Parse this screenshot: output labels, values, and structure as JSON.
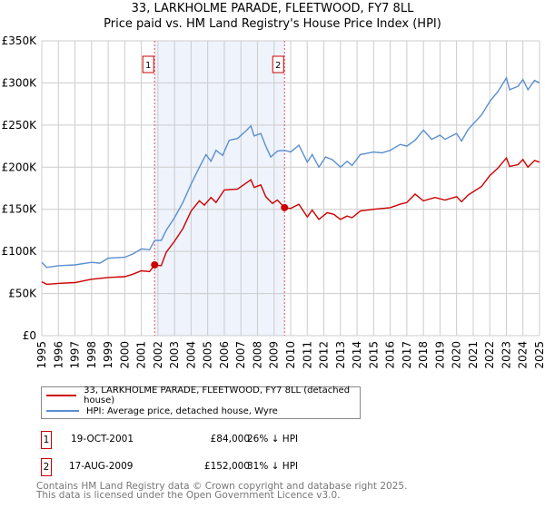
{
  "header": {
    "title": "33, LARKHOLME PARADE, FLEETWOOD, FY7 8LL",
    "subtitle": "Price paid vs. HM Land Registry's House Price Index (HPI)"
  },
  "chart_data": {
    "type": "line",
    "title": "33, LARKHOLME PARADE, FLEETWOOD, FY7 8LL",
    "subtitle": "Price paid vs. HM Land Registry's House Price Index (HPI)",
    "xlim": [
      1995,
      2025
    ],
    "ylim": [
      0,
      350000
    ],
    "yticks": [
      {
        "v": 0,
        "label": "£0"
      },
      {
        "v": 50000,
        "label": "£50K"
      },
      {
        "v": 100000,
        "label": "£100K"
      },
      {
        "v": 150000,
        "label": "£150K"
      },
      {
        "v": 200000,
        "label": "£200K"
      },
      {
        "v": 250000,
        "label": "£250K"
      },
      {
        "v": 300000,
        "label": "£300K"
      },
      {
        "v": 350000,
        "label": "£350K"
      }
    ],
    "xticks": [
      "1995",
      "1996",
      "1997",
      "1998",
      "1999",
      "2000",
      "2001",
      "2002",
      "2003",
      "2004",
      "2005",
      "2006",
      "2007",
      "2008",
      "2009",
      "2010",
      "2011",
      "2012",
      "2013",
      "2014",
      "2015",
      "2016",
      "2017",
      "2018",
      "2019",
      "2020",
      "2021",
      "2022",
      "2023",
      "2024",
      "2025"
    ],
    "grid": true,
    "shaded_range": [
      2001.8,
      2009.63
    ],
    "colors": {
      "property": "#cc0000",
      "hpi": "#5b8fd0",
      "shade": "#eef3fc",
      "marker_border": "#cc0000"
    },
    "series": [
      {
        "name": "33, LARKHOLME PARADE, FLEETWOOD, FY7 8LL (detached house)",
        "color": "#cc0000",
        "x": [
          1995,
          1995.3,
          1996,
          1997,
          1998,
          1999,
          2000,
          2000.5,
          2001,
          2001.5,
          2001.8,
          2002.2,
          2002.5,
          2003,
          2003.5,
          2004,
          2004.5,
          2004.8,
          2005.2,
          2005.5,
          2006,
          2006.8,
          2007.6,
          2007.8,
          2008.2,
          2008.5,
          2008.9,
          2009.2,
          2009.63,
          2010,
          2010.5,
          2011,
          2011.3,
          2011.7,
          2012.2,
          2012.6,
          2013,
          2013.4,
          2013.7,
          2014.2,
          2015,
          2015.5,
          2016,
          2016.6,
          2017,
          2017.5,
          2018,
          2018.7,
          2019.3,
          2020,
          2020.3,
          2020.7,
          2021.5,
          2022,
          2022.5,
          2023,
          2023.2,
          2023.7,
          2024,
          2024.3,
          2024.7,
          2025
        ],
        "y": [
          64000,
          61000,
          62000,
          63000,
          67000,
          69000,
          70000,
          73000,
          77000,
          76000,
          84000,
          83000,
          99000,
          112000,
          127000,
          148000,
          160000,
          155000,
          164000,
          158000,
          173000,
          174000,
          185000,
          176000,
          179000,
          165000,
          157000,
          161000,
          152000,
          151000,
          156000,
          141000,
          149000,
          138000,
          146000,
          144000,
          138000,
          142000,
          140000,
          148000,
          150000,
          151000,
          152000,
          156000,
          158000,
          168000,
          160000,
          164000,
          161000,
          165000,
          159000,
          167000,
          177000,
          190000,
          199000,
          211000,
          201000,
          203000,
          209000,
          200000,
          208000,
          206000
        ]
      },
      {
        "name": "HPI: Average price, detached house, Wyre",
        "color": "#5b8fd0",
        "x": [
          1995,
          1995.3,
          1996,
          1997,
          1998,
          1998.5,
          1999,
          2000,
          2000.5,
          2001,
          2001.5,
          2001.8,
          2002.2,
          2002.5,
          2003,
          2003.5,
          2004,
          2004.5,
          2004.9,
          2005.2,
          2005.5,
          2005.9,
          2006.3,
          2006.8,
          2007.3,
          2007.6,
          2007.8,
          2008.2,
          2008.5,
          2008.8,
          2009.2,
          2009.63,
          2010,
          2010.5,
          2011,
          2011.3,
          2011.7,
          2012.1,
          2012.5,
          2013,
          2013.4,
          2013.7,
          2014.2,
          2015,
          2015.5,
          2016,
          2016.6,
          2017,
          2017.5,
          2018,
          2018.5,
          2019,
          2019.3,
          2020,
          2020.3,
          2020.7,
          2021.5,
          2022,
          2022.5,
          2023,
          2023.2,
          2023.7,
          2024,
          2024.3,
          2024.7,
          2025
        ],
        "y": [
          87000,
          81000,
          83000,
          84000,
          87000,
          86000,
          92000,
          93000,
          97000,
          103000,
          102000,
          113000,
          113000,
          125000,
          140000,
          158000,
          180000,
          200000,
          215000,
          207000,
          220000,
          214000,
          232000,
          234000,
          243000,
          249000,
          237000,
          240000,
          225000,
          212000,
          219000,
          220000,
          218000,
          226000,
          206000,
          215000,
          200000,
          212000,
          209000,
          200000,
          207000,
          202000,
          215000,
          218000,
          217000,
          220000,
          227000,
          225000,
          232000,
          244000,
          233000,
          238000,
          233000,
          240000,
          231000,
          245000,
          262000,
          278000,
          290000,
          306000,
          292000,
          296000,
          304000,
          292000,
          303000,
          300000
        ]
      }
    ],
    "sales": [
      {
        "id": "1",
        "x": 2001.8,
        "y": 84000
      },
      {
        "id": "2",
        "x": 2009.63,
        "y": 152000
      }
    ]
  },
  "legend": {
    "items": [
      {
        "label": "33, LARKHOLME PARADE, FLEETWOOD, FY7 8LL (detached house)",
        "color": "#cc0000"
      },
      {
        "label": "HPI: Average price, detached house, Wyre",
        "color": "#5b8fd0"
      }
    ]
  },
  "transactions": [
    {
      "id": "1",
      "date": "19-OCT-2001",
      "price": "£84,000",
      "delta": "26% ↓ HPI"
    },
    {
      "id": "2",
      "date": "17-AUG-2009",
      "price": "£152,000",
      "delta": "31% ↓ HPI"
    }
  ],
  "footer": {
    "line1": "Contains HM Land Registry data © Crown copyright and database right 2025.",
    "line2": "This data is licensed under the Open Government Licence v3.0."
  }
}
